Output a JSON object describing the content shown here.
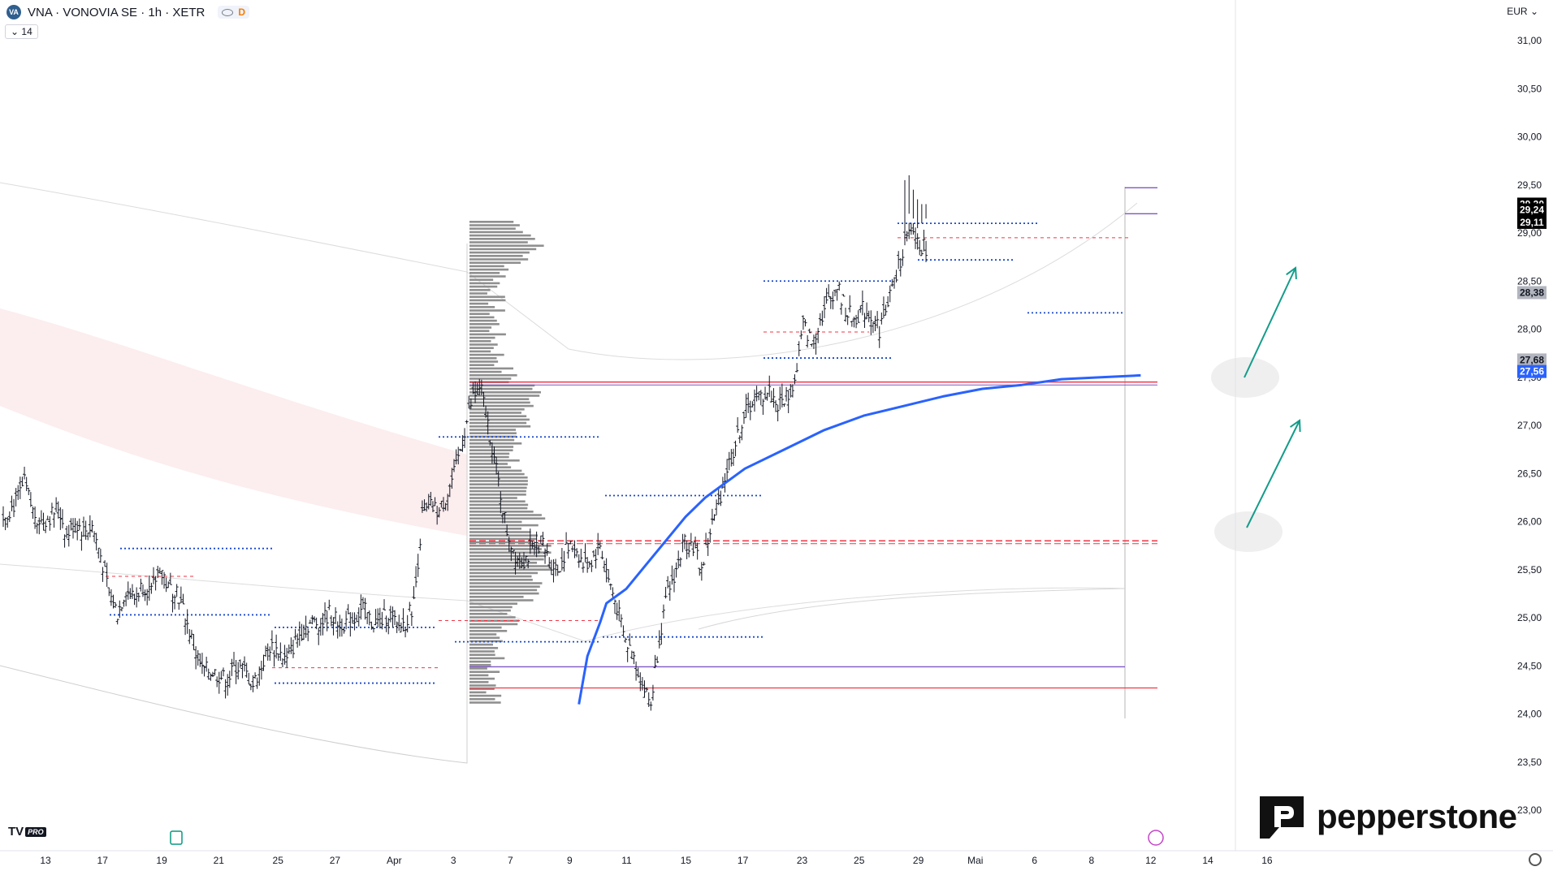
{
  "header": {
    "symbol_logo": "VA",
    "title": "VNA · VONOVIA SE · 1h · XETR",
    "badge_d": "D",
    "interval_value": "14",
    "currency": "EUR"
  },
  "watermarks": {
    "tv": "TV",
    "tv_pro": "PRO",
    "brand": "pepperstone"
  },
  "colors": {
    "candle": "#131722",
    "ema_blue": "#2962ff",
    "level_red": "#f23645",
    "level_purple": "#7e57c2",
    "dotted_blue": "#1848cc",
    "arrow_teal": "#139c8a",
    "band_red": "#f8d7da",
    "volume_profile": "#8f8f8f"
  },
  "chart_data": {
    "type": "candlestick",
    "ylim": [
      23.0,
      31.25
    ],
    "y_ticks": [
      "31,00",
      "30,50",
      "30,00",
      "29,50",
      "29,00",
      "28,50",
      "28,00",
      "27,50",
      "27,00",
      "26,50",
      "26,00",
      "25,50",
      "25,00",
      "24,50",
      "24,00",
      "23,50",
      "23,00"
    ],
    "y_tick_values": [
      31.0,
      30.5,
      30.0,
      29.5,
      29.0,
      28.5,
      28.0,
      27.5,
      27.0,
      26.5,
      26.0,
      25.5,
      25.0,
      24.5,
      24.0,
      23.5,
      23.0
    ],
    "x_ticks": [
      "13",
      "17",
      "19",
      "21",
      "25",
      "27",
      "Apr",
      "3",
      "7",
      "9",
      "11",
      "15",
      "17",
      "23",
      "25",
      "29",
      "Mai",
      "6",
      "8",
      "12",
      "14",
      "16"
    ],
    "x_tick_index": [
      0,
      26,
      53,
      79,
      106,
      132,
      159,
      186,
      212,
      239,
      265,
      292,
      318,
      345,
      371,
      398,
      424,
      451,
      477,
      504,
      530,
      557
    ],
    "last_candle_index": 436,
    "price_path": [
      [
        0,
        26.05
      ],
      [
        6,
        26.2
      ],
      [
        10,
        26.4
      ],
      [
        14,
        26.1
      ],
      [
        18,
        26.0
      ],
      [
        22,
        26.05
      ],
      [
        26,
        26.15
      ],
      [
        30,
        25.85
      ],
      [
        34,
        26.0
      ],
      [
        38,
        25.9
      ],
      [
        42,
        25.95
      ],
      [
        46,
        25.65
      ],
      [
        50,
        25.25
      ],
      [
        54,
        25.05
      ],
      [
        58,
        25.3
      ],
      [
        62,
        25.2
      ],
      [
        66,
        25.35
      ],
      [
        70,
        25.25
      ],
      [
        74,
        25.55
      ],
      [
        78,
        25.3
      ],
      [
        82,
        25.3
      ],
      [
        86,
        25.0
      ],
      [
        90,
        24.7
      ],
      [
        94,
        24.45
      ],
      [
        98,
        24.45
      ],
      [
        102,
        24.4
      ],
      [
        106,
        24.35
      ],
      [
        110,
        24.5
      ],
      [
        114,
        24.45
      ],
      [
        118,
        24.3
      ],
      [
        122,
        24.5
      ],
      [
        126,
        24.7
      ],
      [
        130,
        24.65
      ],
      [
        134,
        24.55
      ],
      [
        138,
        24.75
      ],
      [
        142,
        24.9
      ],
      [
        146,
        24.95
      ],
      [
        150,
        24.95
      ],
      [
        154,
        25.05
      ],
      [
        158,
        24.95
      ],
      [
        162,
        24.95
      ],
      [
        166,
        25.0
      ],
      [
        170,
        25.1
      ],
      [
        174,
        24.95
      ],
      [
        178,
        24.95
      ],
      [
        182,
        25.05
      ],
      [
        186,
        24.9
      ],
      [
        190,
        24.95
      ],
      [
        194,
        25.15
      ],
      [
        198,
        26.05
      ],
      [
        202,
        26.15
      ],
      [
        206,
        26.1
      ],
      [
        210,
        26.3
      ],
      [
        214,
        26.55
      ],
      [
        218,
        26.95
      ],
      [
        222,
        27.3
      ],
      [
        226,
        27.35
      ],
      [
        230,
        26.9
      ],
      [
        234,
        26.4
      ],
      [
        238,
        25.9
      ],
      [
        242,
        25.65
      ],
      [
        246,
        25.6
      ],
      [
        250,
        25.7
      ],
      [
        254,
        25.8
      ],
      [
        258,
        25.6
      ],
      [
        262,
        25.5
      ],
      [
        266,
        25.7
      ],
      [
        270,
        25.75
      ],
      [
        274,
        25.55
      ],
      [
        278,
        25.6
      ],
      [
        282,
        25.75
      ],
      [
        286,
        25.4
      ],
      [
        290,
        25.1
      ],
      [
        294,
        24.75
      ],
      [
        298,
        24.6
      ],
      [
        302,
        24.3
      ],
      [
        306,
        24.1
      ],
      [
        310,
        24.8
      ],
      [
        314,
        25.25
      ],
      [
        318,
        25.5
      ],
      [
        322,
        25.8
      ],
      [
        326,
        25.75
      ],
      [
        330,
        25.5
      ],
      [
        334,
        25.9
      ],
      [
        338,
        26.2
      ],
      [
        342,
        26.55
      ],
      [
        346,
        26.8
      ],
      [
        350,
        27.1
      ],
      [
        354,
        27.25
      ],
      [
        358,
        27.3
      ],
      [
        362,
        27.35
      ],
      [
        366,
        27.2
      ],
      [
        370,
        27.3
      ],
      [
        374,
        27.45
      ],
      [
        378,
        28.05
      ],
      [
        382,
        27.85
      ],
      [
        386,
        28.1
      ],
      [
        390,
        28.3
      ],
      [
        394,
        28.45
      ],
      [
        398,
        28.2
      ],
      [
        402,
        28.1
      ],
      [
        406,
        28.2
      ],
      [
        410,
        28.15
      ],
      [
        414,
        28.0
      ],
      [
        418,
        28.3
      ],
      [
        422,
        28.55
      ],
      [
        426,
        28.9
      ],
      [
        430,
        29.0
      ],
      [
        434,
        28.85
      ]
    ],
    "price_path_note": "",
    "ema": [
      [
        185,
        25.15
      ],
      [
        190,
        25.3
      ],
      [
        195,
        25.55
      ],
      [
        200,
        25.8
      ],
      [
        205,
        26.05
      ],
      [
        210,
        26.25
      ],
      [
        215,
        26.4
      ],
      [
        220,
        26.55
      ],
      [
        230,
        26.75
      ],
      [
        240,
        26.95
      ],
      [
        250,
        27.1
      ],
      [
        260,
        27.2
      ],
      [
        270,
        27.3
      ],
      [
        280,
        27.38
      ],
      [
        290,
        27.42
      ],
      [
        300,
        27.48
      ],
      [
        310,
        27.5
      ],
      [
        320,
        27.52
      ]
    ],
    "price_labels": [
      {
        "text": "29,30",
        "value": 29.3,
        "bg": "#000000",
        "fg": "#ffffff"
      },
      {
        "text": "29,24",
        "value": 29.24,
        "bg": "#000000",
        "fg": "#ffffff"
      },
      {
        "text": "29,11",
        "value": 29.11,
        "bg": "#000000",
        "fg": "#ffffff"
      },
      {
        "text": "28,38",
        "value": 28.38,
        "bg": "#b2b5be",
        "fg": "#131722"
      },
      {
        "text": "27,68",
        "value": 27.68,
        "bg": "#b2b5be",
        "fg": "#131722"
      },
      {
        "text": "27,56",
        "value": 27.56,
        "bg": "#2962ff",
        "fg": "#ffffff"
      }
    ]
  }
}
